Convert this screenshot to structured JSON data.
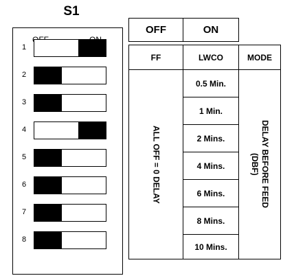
{
  "s1": {
    "title": "S1",
    "off_label": "OFF",
    "on_label": "ON",
    "switches": [
      {
        "number": "1",
        "state": "ON"
      },
      {
        "number": "2",
        "state": "OFF"
      },
      {
        "number": "3",
        "state": "OFF"
      },
      {
        "number": "4",
        "state": "ON"
      },
      {
        "number": "5",
        "state": "OFF"
      },
      {
        "number": "6",
        "state": "OFF"
      },
      {
        "number": "7",
        "state": "OFF"
      },
      {
        "number": "8",
        "state": "OFF"
      }
    ]
  },
  "table": {
    "header_off": "OFF",
    "header_on": "ON",
    "col_ff": "FF",
    "col_lwco": "LWCO",
    "col_mode": "MODE",
    "ff_note": "ALL OFF = 0 DELAY",
    "mode_line1": "DELAY BEFORE FEED",
    "mode_line2": "(DBF)",
    "lwco_values": [
      "0.5 Min.",
      "1 Min.",
      "2 Mins.",
      "4 Mins.",
      "6 Mins.",
      "8 Mins.",
      "10 Mins."
    ]
  }
}
